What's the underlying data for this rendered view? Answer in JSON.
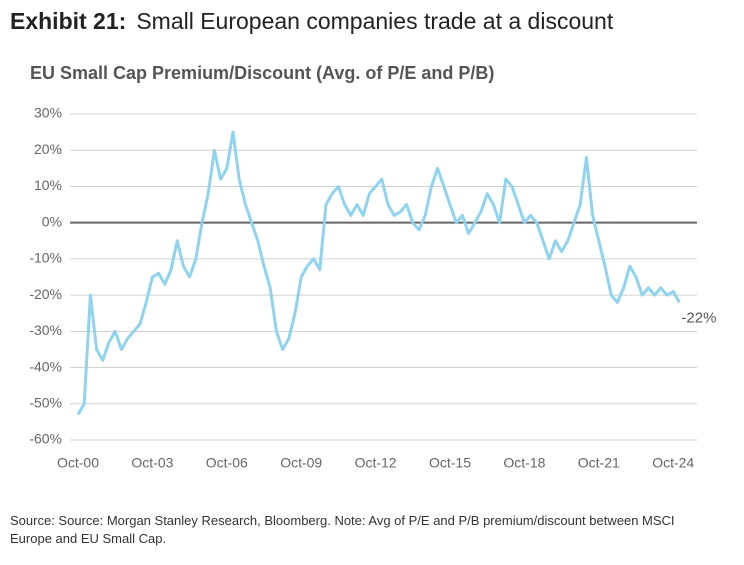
{
  "header": {
    "label": "Exhibit 21:",
    "title": "Small European companies trade at a discount"
  },
  "chart_data": {
    "type": "line",
    "title": "EU Small Cap Premium/Discount (Avg. of P/E and P/B)",
    "x": [
      "Oct-00",
      "Jan-01",
      "Apr-01",
      "Jul-01",
      "Oct-01",
      "Jan-02",
      "Apr-02",
      "Jul-02",
      "Oct-02",
      "Jan-03",
      "Apr-03",
      "Jul-03",
      "Oct-03",
      "Jan-04",
      "Apr-04",
      "Jul-04",
      "Oct-04",
      "Jan-05",
      "Apr-05",
      "Jul-05",
      "Oct-05",
      "Jan-06",
      "Apr-06",
      "Jul-06",
      "Oct-06",
      "Jan-07",
      "Apr-07",
      "Jul-07",
      "Oct-07",
      "Jan-08",
      "Apr-08",
      "Jul-08",
      "Oct-08",
      "Jan-09",
      "Apr-09",
      "Jul-09",
      "Oct-09",
      "Jan-10",
      "Apr-10",
      "Jul-10",
      "Oct-10",
      "Jan-11",
      "Apr-11",
      "Jul-11",
      "Oct-11",
      "Jan-12",
      "Apr-12",
      "Jul-12",
      "Oct-12",
      "Jan-13",
      "Apr-13",
      "Jul-13",
      "Oct-13",
      "Jan-14",
      "Apr-14",
      "Jul-14",
      "Oct-14",
      "Jan-15",
      "Apr-15",
      "Jul-15",
      "Oct-15",
      "Jan-16",
      "Apr-16",
      "Jul-16",
      "Oct-16",
      "Jan-17",
      "Apr-17",
      "Jul-17",
      "Oct-17",
      "Jan-18",
      "Apr-18",
      "Jul-18",
      "Oct-18",
      "Jan-19",
      "Apr-19",
      "Jul-19",
      "Oct-19",
      "Jan-20",
      "Apr-20",
      "Jul-20",
      "Oct-20",
      "Jan-21",
      "Apr-21",
      "Jul-21",
      "Oct-21",
      "Jan-22",
      "Apr-22",
      "Jul-22",
      "Oct-22",
      "Jan-23",
      "Apr-23",
      "Jul-23",
      "Oct-23",
      "Jan-24",
      "Apr-24",
      "Jul-24",
      "Oct-24",
      "Jan-25"
    ],
    "values": [
      -53,
      -50,
      -20,
      -35,
      -38,
      -33,
      -30,
      -35,
      -32,
      -30,
      -28,
      -22,
      -15,
      -14,
      -17,
      -13,
      -5,
      -12,
      -15,
      -10,
      0,
      8,
      20,
      12,
      15,
      25,
      12,
      5,
      0,
      -5,
      -12,
      -18,
      -30,
      -35,
      -32,
      -25,
      -15,
      -12,
      -10,
      -13,
      5,
      8,
      10,
      5,
      2,
      5,
      2,
      8,
      10,
      12,
      5,
      2,
      3,
      5,
      0,
      -2,
      2,
      10,
      15,
      10,
      5,
      0,
      2,
      -3,
      0,
      3,
      8,
      5,
      0,
      12,
      10,
      5,
      0,
      2,
      0,
      -5,
      -10,
      -5,
      -8,
      -5,
      0,
      5,
      18,
      2,
      -5,
      -12,
      -20,
      -22,
      -18,
      -12,
      -15,
      -20,
      -18,
      -20,
      -18,
      -20,
      -19,
      -22
    ],
    "value_labels": [
      null,
      null,
      null,
      null,
      null,
      null,
      null,
      null,
      null,
      null,
      null,
      null,
      null,
      null,
      null,
      null,
      null,
      null,
      null,
      null,
      null,
      null,
      null,
      null,
      null,
      null,
      null,
      null,
      null,
      null,
      null,
      null,
      null,
      null,
      null,
      null,
      null,
      null,
      null,
      null,
      null,
      null,
      null,
      null,
      null,
      null,
      null,
      null,
      null,
      null,
      null,
      null,
      null,
      null,
      null,
      null,
      null,
      null,
      null,
      null,
      null,
      null,
      null,
      null,
      null,
      null,
      null,
      null,
      null,
      null,
      null,
      null,
      null,
      null,
      null,
      null,
      null,
      null,
      null,
      null,
      null,
      null,
      null,
      null,
      null,
      null,
      null,
      null,
      null,
      null,
      null,
      null,
      null,
      null,
      null,
      null,
      null,
      "-22%"
    ],
    "color": "#8fd3ef",
    "xticks": [
      "Oct-00",
      "Oct-03",
      "Oct-06",
      "Oct-09",
      "Oct-12",
      "Oct-15",
      "Oct-18",
      "Oct-21",
      "Oct-24"
    ],
    "ylim": [
      -60,
      30
    ],
    "yticks": [
      {
        "value": -60,
        "label": "-60%"
      },
      {
        "value": -50,
        "label": "-50%"
      },
      {
        "value": -40,
        "label": "-40%"
      },
      {
        "value": -30,
        "label": "-30%"
      },
      {
        "value": -20,
        "label": "-20%"
      },
      {
        "value": -10,
        "label": "-10%"
      },
      {
        "value": 0,
        "label": "0%"
      },
      {
        "value": 10,
        "label": "10%"
      },
      {
        "value": 20,
        "label": "20%"
      },
      {
        "value": 30,
        "label": "30%"
      }
    ],
    "grid": true
  },
  "footer": {
    "source": "Source: Source: Morgan Stanley Research, Bloomberg. Note: Avg of P/E and P/B premium/discount between MSCI Europe and EU Small Cap."
  }
}
